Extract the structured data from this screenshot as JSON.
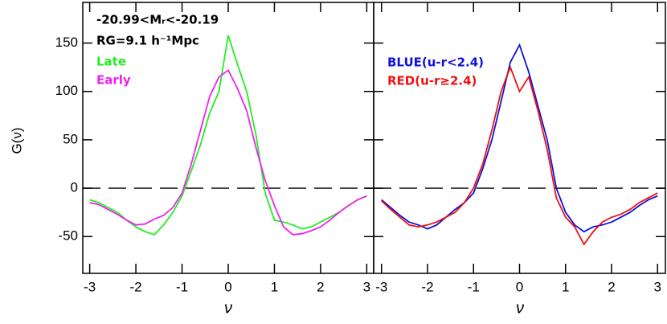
{
  "chart_data": [
    {
      "type": "line",
      "ylabel": "G(ν)",
      "xlabel": "ν",
      "annotations": [
        "-20.99<Mᵣ<-20.19",
        "RG=9.1 h⁻¹Mpc"
      ],
      "xlim": [
        -3.15,
        3.15
      ],
      "xticks": [
        -3,
        -2,
        -1,
        0,
        1,
        2,
        3
      ],
      "ylim": [
        -88,
        192
      ],
      "yticks": [
        -50,
        0,
        50,
        100,
        150
      ],
      "reference_line": 0,
      "x": [
        -3,
        -2.8,
        -2.6,
        -2.4,
        -2.2,
        -2,
        -1.8,
        -1.6,
        -1.4,
        -1.2,
        -1,
        -0.8,
        -0.6,
        -0.4,
        -0.2,
        0,
        0.2,
        0.4,
        0.6,
        0.8,
        1,
        1.2,
        1.4,
        1.6,
        1.8,
        2,
        2.2,
        2.4,
        2.6,
        2.8,
        3
      ],
      "series": [
        {
          "name": "Late",
          "color": "#22ee22",
          "values": [
            -12,
            -15,
            -20,
            -25,
            -33,
            -40,
            -45,
            -48,
            -38,
            -25,
            -8,
            18,
            45,
            78,
            100,
            158,
            128,
            100,
            55,
            -5,
            -33,
            -35,
            -38,
            -42,
            -40,
            -35,
            -30,
            -25,
            -18,
            -12,
            -8
          ]
        },
        {
          "name": "Early",
          "color": "#ee22ee",
          "values": [
            -15,
            -17,
            -22,
            -27,
            -33,
            -38,
            -37,
            -32,
            -28,
            -20,
            -5,
            25,
            60,
            95,
            115,
            122,
            103,
            80,
            42,
            8,
            -18,
            -40,
            -48,
            -47,
            -44,
            -40,
            -33,
            -25,
            -18,
            -12,
            -8
          ]
        }
      ]
    },
    {
      "type": "line",
      "xlabel": "ν",
      "xlim": [
        -3.17,
        3.17
      ],
      "xticks": [
        -3,
        -2,
        -1,
        0,
        1,
        2,
        3
      ],
      "ylim": [
        -88,
        192
      ],
      "yticks": [
        -50,
        0,
        50,
        100,
        150
      ],
      "reference_line": 0,
      "x": [
        -3,
        -2.8,
        -2.6,
        -2.4,
        -2.2,
        -2,
        -1.8,
        -1.6,
        -1.4,
        -1.2,
        -1,
        -0.8,
        -0.6,
        -0.4,
        -0.2,
        0,
        0.2,
        0.4,
        0.6,
        0.8,
        1,
        1.2,
        1.4,
        1.6,
        1.8,
        2,
        2.2,
        2.4,
        2.6,
        2.8,
        3
      ],
      "series": [
        {
          "name": "BLUE(u-r<2.4)",
          "color": "#1111dd",
          "values": [
            -12,
            -20,
            -28,
            -35,
            -38,
            -42,
            -38,
            -30,
            -22,
            -15,
            -5,
            20,
            50,
            90,
            130,
            148,
            120,
            85,
            50,
            0,
            -25,
            -38,
            -45,
            -40,
            -38,
            -35,
            -30,
            -25,
            -18,
            -12,
            -8
          ]
        },
        {
          "name": "RED(u-r≥2.4)",
          "color": "#ee1111",
          "values": [
            -13,
            -22,
            -30,
            -38,
            -40,
            -38,
            -35,
            -30,
            -25,
            -15,
            0,
            25,
            60,
            100,
            125,
            100,
            115,
            80,
            40,
            -10,
            -30,
            -40,
            -58,
            -45,
            -35,
            -30,
            -27,
            -22,
            -15,
            -10,
            -5
          ]
        }
      ]
    }
  ]
}
